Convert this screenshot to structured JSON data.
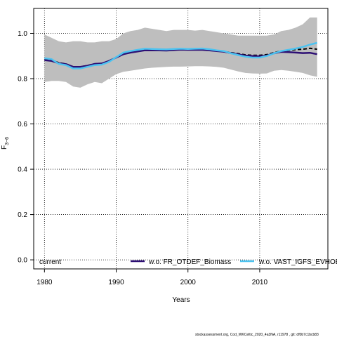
{
  "chart_data": {
    "type": "line",
    "xlabel": "Years",
    "ylabel": "F",
    "ylabel_sub": "3−6",
    "xlim": [
      1978.5,
      2019.5
    ],
    "ylim": [
      -0.04,
      1.11
    ],
    "x_ticks": [
      1980,
      1990,
      2000,
      2010
    ],
    "y_ticks": [
      0.0,
      0.2,
      0.4,
      0.6,
      0.8,
      1.0
    ],
    "grid": true,
    "legend_position": "bottom",
    "legend": {
      "current_label": "current",
      "items": [
        "w.o. FR_OTDEF_Biomass",
        "w.o. VAST_IGFS_EVHOE"
      ]
    },
    "x": [
      1980,
      1981,
      1982,
      1983,
      1984,
      1985,
      1986,
      1987,
      1988,
      1989,
      1990,
      1991,
      1992,
      1993,
      1994,
      1995,
      1996,
      1997,
      1998,
      1999,
      2000,
      2001,
      2002,
      2003,
      2004,
      2005,
      2006,
      2007,
      2008,
      2009,
      2010,
      2011,
      2012,
      2013,
      2014,
      2015,
      2016,
      2017,
      2018
    ],
    "band": {
      "lower": [
        0.785,
        0.79,
        0.79,
        0.785,
        0.765,
        0.76,
        0.775,
        0.785,
        0.78,
        0.8,
        0.82,
        0.83,
        0.835,
        0.84,
        0.845,
        0.848,
        0.85,
        0.852,
        0.853,
        0.853,
        0.854,
        0.855,
        0.855,
        0.854,
        0.852,
        0.848,
        0.84,
        0.832,
        0.825,
        0.823,
        0.822,
        0.823,
        0.835,
        0.838,
        0.835,
        0.83,
        0.825,
        0.815,
        0.808
      ],
      "upper": [
        0.995,
        0.98,
        0.965,
        0.96,
        0.965,
        0.965,
        0.96,
        0.96,
        0.965,
        0.965,
        0.975,
        1.0,
        1.01,
        1.015,
        1.025,
        1.02,
        1.015,
        1.01,
        1.015,
        1.015,
        1.015,
        1.012,
        1.015,
        1.01,
        1.005,
        1.0,
        0.995,
        0.99,
        0.99,
        0.99,
        0.99,
        0.99,
        0.995,
        1.01,
        1.015,
        1.025,
        1.04,
        1.07,
        1.07
      ]
    },
    "series": [
      {
        "name": "current",
        "color": "#000000",
        "dashed": true,
        "values": [
          0.885,
          0.882,
          0.87,
          0.865,
          0.852,
          0.852,
          0.858,
          0.865,
          0.867,
          0.878,
          0.895,
          0.91,
          0.918,
          0.922,
          0.928,
          0.928,
          0.927,
          0.926,
          0.928,
          0.93,
          0.929,
          0.929,
          0.929,
          0.927,
          0.923,
          0.92,
          0.915,
          0.91,
          0.905,
          0.903,
          0.903,
          0.906,
          0.915,
          0.922,
          0.925,
          0.928,
          0.93,
          0.934,
          0.93
        ]
      },
      {
        "name": "w.o. FR_OTDEF_Biomass",
        "color": "#2d0f74",
        "dashed": false,
        "values": [
          0.882,
          0.878,
          0.868,
          0.864,
          0.852,
          0.852,
          0.857,
          0.865,
          0.867,
          0.878,
          0.893,
          0.908,
          0.915,
          0.92,
          0.925,
          0.925,
          0.925,
          0.924,
          0.926,
          0.928,
          0.927,
          0.927,
          0.927,
          0.925,
          0.922,
          0.919,
          0.913,
          0.907,
          0.902,
          0.9,
          0.899,
          0.902,
          0.912,
          0.918,
          0.917,
          0.915,
          0.913,
          0.914,
          0.908
        ]
      },
      {
        "name": "w.o. VAST_IGFS_EVHOE",
        "color": "#4dc3f0",
        "dashed": false,
        "values": [
          0.89,
          0.886,
          0.865,
          0.86,
          0.845,
          0.845,
          0.852,
          0.86,
          0.862,
          0.874,
          0.895,
          0.915,
          0.922,
          0.927,
          0.932,
          0.931,
          0.93,
          0.929,
          0.931,
          0.932,
          0.931,
          0.932,
          0.933,
          0.93,
          0.925,
          0.922,
          0.912,
          0.904,
          0.897,
          0.893,
          0.893,
          0.9,
          0.912,
          0.922,
          0.927,
          0.933,
          0.94,
          0.95,
          0.958
        ]
      }
    ]
  },
  "footer": "stockassessment.org, Cod_WKCeltic_2020_4a3NA, r11978 , git: df0b7c1bcb83"
}
